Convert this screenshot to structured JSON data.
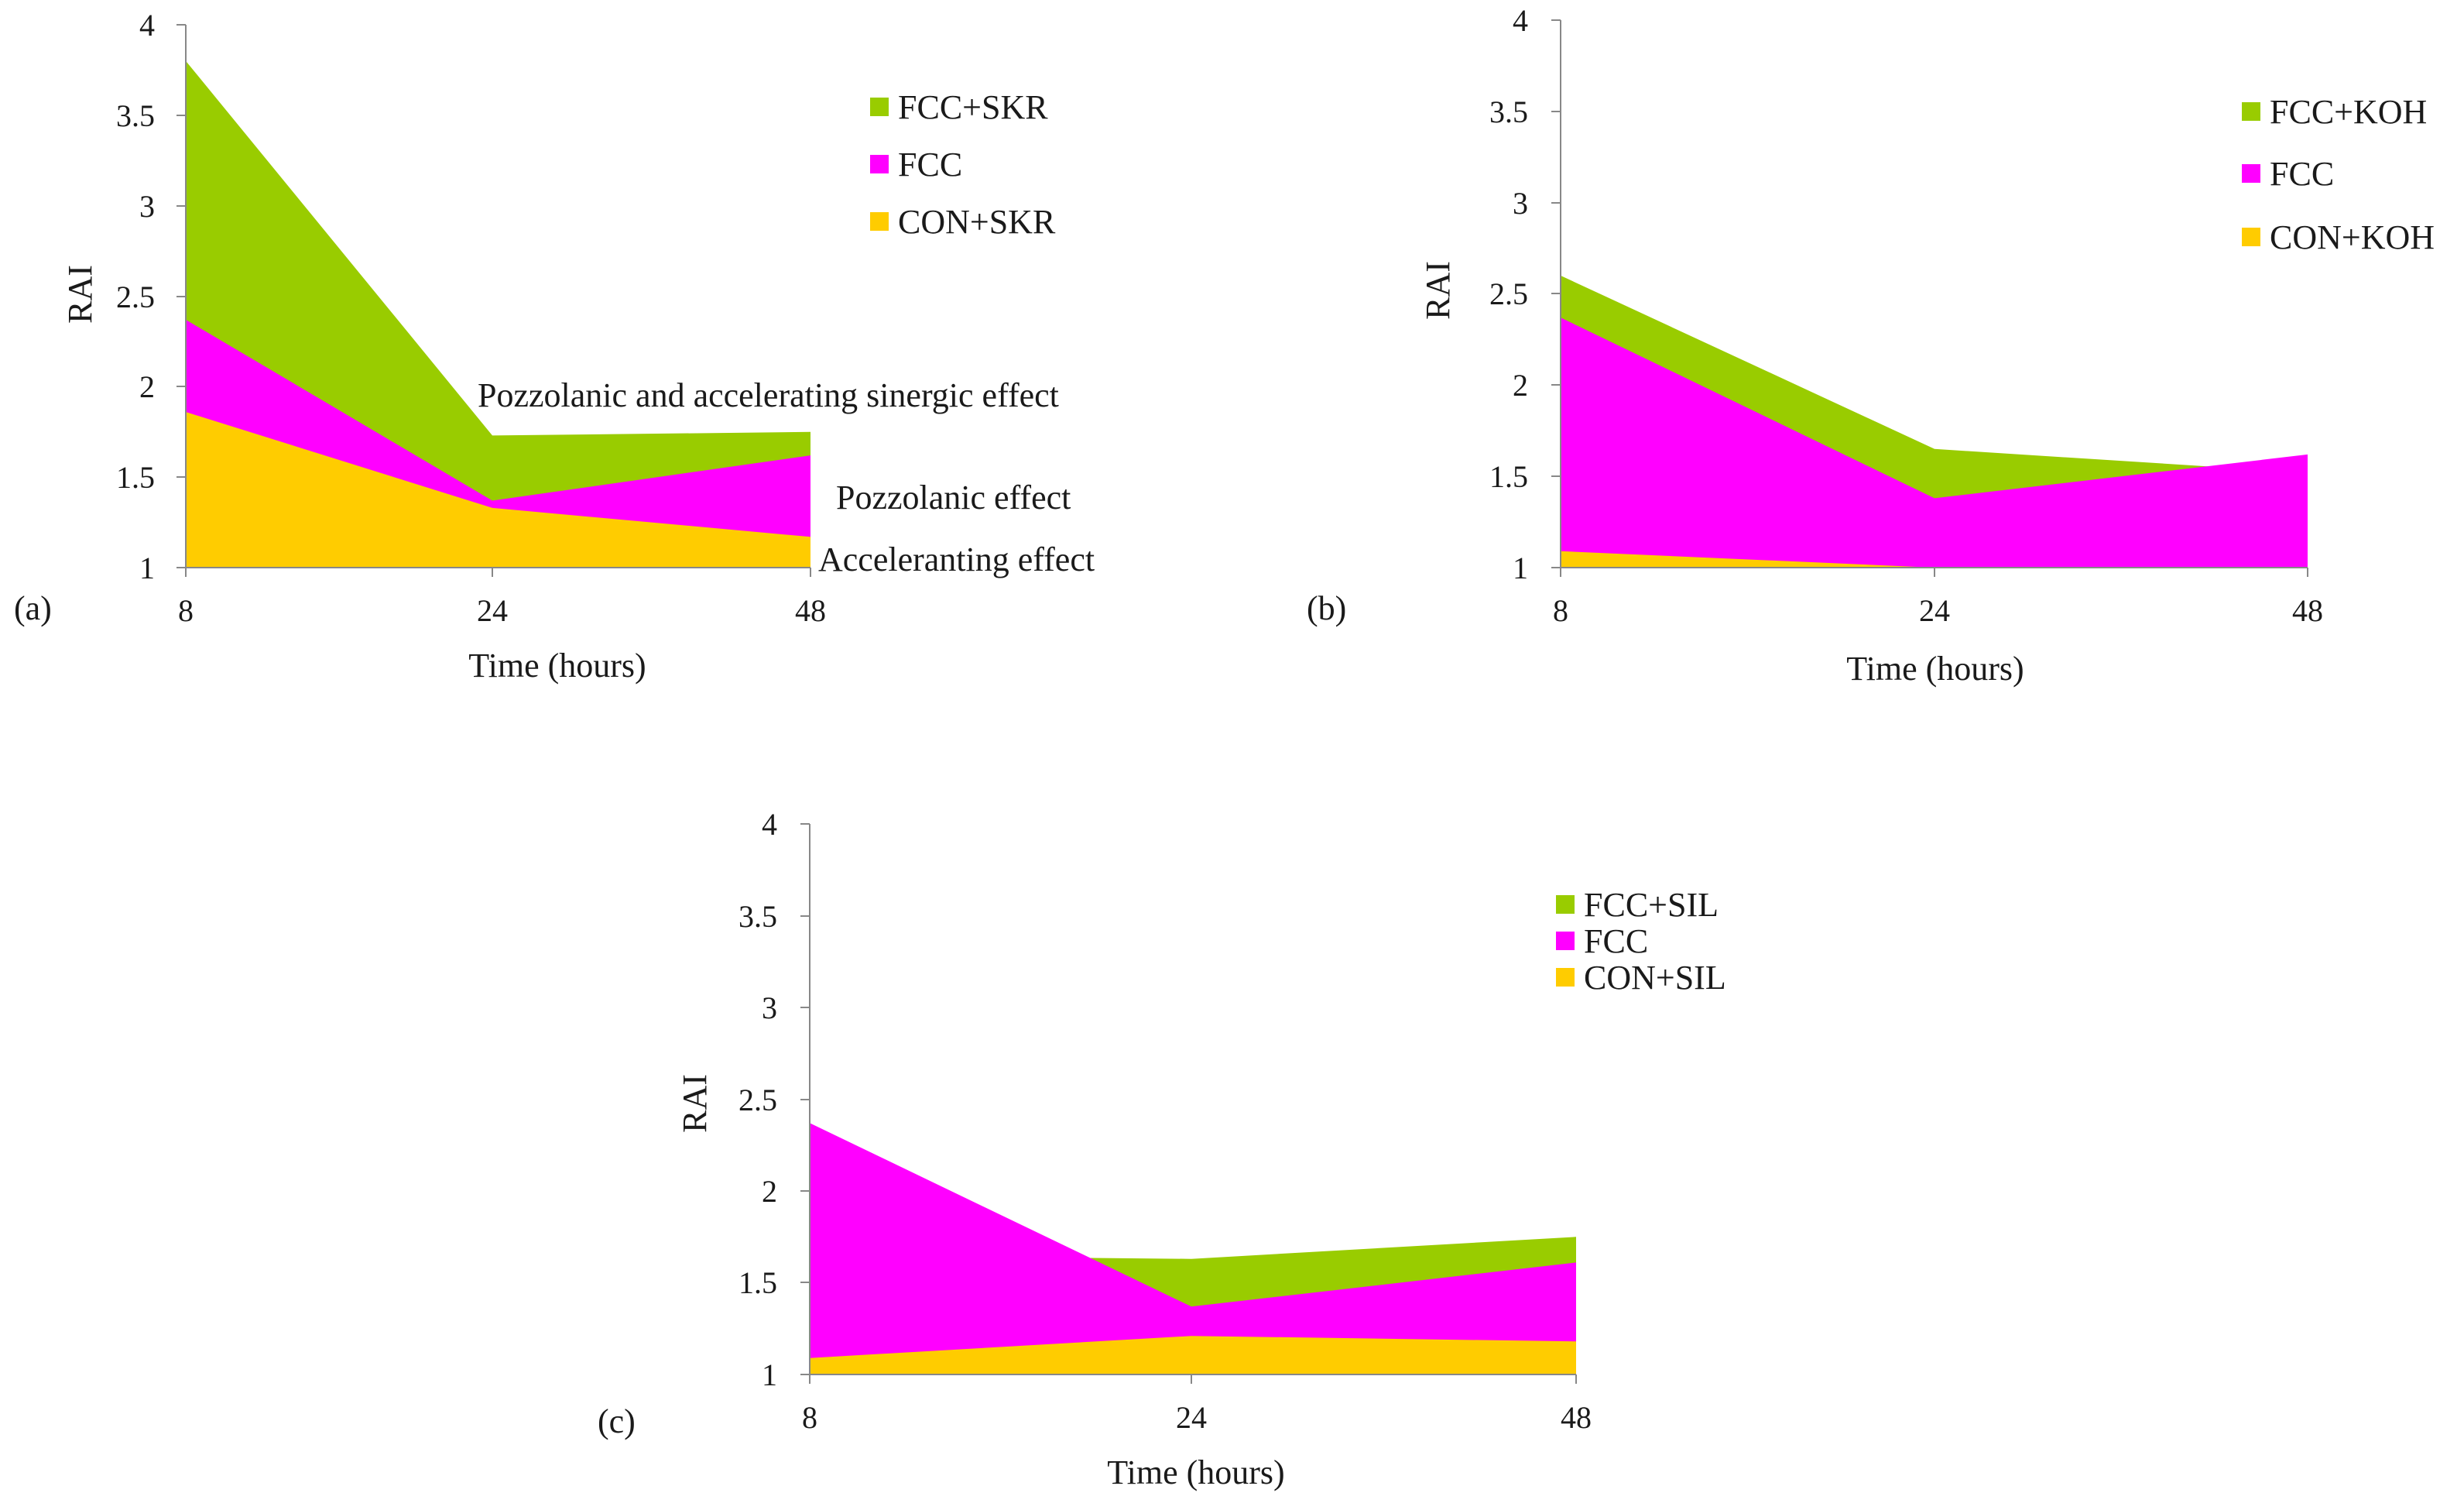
{
  "colors": {
    "green": "#99cc00",
    "magenta": "#ff00ff",
    "yellow": "#ffcc00",
    "axis": "#888888"
  },
  "chart_data": [
    {
      "panel": "(a)",
      "type": "area",
      "x": [
        8,
        24,
        48
      ],
      "xlabel": "Time (hours)",
      "ylabel": "RAI",
      "ylim": [
        1,
        4
      ],
      "yticks": [
        "1",
        "1.5",
        "2",
        "2.5",
        "3",
        "3.5",
        "4"
      ],
      "series": [
        {
          "name": "FCC+SKR",
          "values": [
            3.8,
            1.73,
            1.75
          ]
        },
        {
          "name": "FCC",
          "values": [
            2.37,
            1.37,
            1.62
          ]
        },
        {
          "name": "CON+SKR",
          "values": [
            1.86,
            1.33,
            1.17
          ]
        }
      ],
      "legend": [
        "FCC+SKR",
        "FCC",
        "CON+SKR"
      ],
      "annotations": [
        "Pozzolanic and accelerating sinergic effect",
        "Pozzolanic effect",
        "Acceleranting effect"
      ]
    },
    {
      "panel": "(b)",
      "type": "area",
      "x": [
        8,
        24,
        48
      ],
      "xlabel": "Time (hours)",
      "ylabel": "RAI",
      "ylim": [
        1,
        4
      ],
      "yticks": [
        "1",
        "1.5",
        "2",
        "2.5",
        "3",
        "3.5",
        "4"
      ],
      "series": [
        {
          "name": "FCC+KOH",
          "values": [
            2.6,
            1.65,
            1.52
          ]
        },
        {
          "name": "FCC",
          "values": [
            2.37,
            1.38,
            1.62
          ]
        },
        {
          "name": "CON+KOH",
          "values": [
            1.09,
            0.9,
            0.9
          ]
        }
      ],
      "legend": [
        "FCC+KOH",
        "FCC",
        "CON+KOH"
      ],
      "annotations": []
    },
    {
      "panel": "(c)",
      "type": "area",
      "x": [
        8,
        24,
        48
      ],
      "xlabel": "Time (hours)",
      "ylabel": "RAI",
      "ylim": [
        1,
        4
      ],
      "yticks": [
        "1",
        "1.5",
        "2",
        "2.5",
        "3",
        "3.5",
        "4"
      ],
      "series": [
        {
          "name": "FCC+SIL",
          "values": [
            1.65,
            1.63,
            1.75
          ]
        },
        {
          "name": "FCC",
          "values": [
            2.37,
            1.37,
            1.61
          ]
        },
        {
          "name": "CON+SIL",
          "values": [
            1.09,
            1.21,
            1.18
          ]
        }
      ],
      "legend": [
        "FCC+SIL",
        "FCC",
        "CON+SIL"
      ],
      "annotations": []
    }
  ]
}
